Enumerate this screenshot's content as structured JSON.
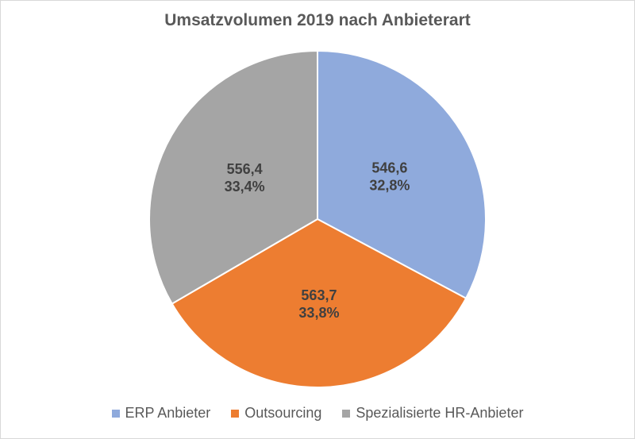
{
  "chart_data": {
    "type": "pie",
    "title": "Umsatzvolumen 2019 nach Anbieterart",
    "slices": [
      {
        "label": "ERP Anbieter",
        "value": 546.6,
        "value_label": "546,6",
        "percent_label": "32,8%",
        "color": "#8faadc"
      },
      {
        "label": "Outsourcing",
        "value": 563.7,
        "value_label": "563,7",
        "percent_label": "33,8%",
        "color": "#ed7d31"
      },
      {
        "label": "Spezialisierte HR-Anbieter",
        "value": 556.4,
        "value_label": "556,4",
        "percent_label": "33,4%",
        "color": "#a5a5a5"
      }
    ],
    "legend_position": "bottom",
    "label_color": "#404040"
  }
}
